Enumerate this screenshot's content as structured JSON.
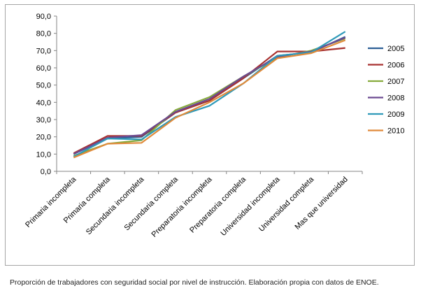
{
  "chart_data": {
    "type": "line",
    "title": "",
    "xlabel": "",
    "ylabel": "",
    "ylim": [
      0,
      90
    ],
    "yticks": [
      "0,0",
      "10,0",
      "20,0",
      "30,0",
      "40,0",
      "50,0",
      "60,0",
      "70,0",
      "80,0",
      "90,0"
    ],
    "grid": false,
    "legend_position": "right",
    "categories": [
      "Primaria incompleta",
      "Primaria completa",
      "Secundaria incompleta",
      "Secundaria completa",
      "Preparatoria incompleta",
      "Preparatoria completa",
      "Universidad incompleta",
      "Universidad completa",
      "Mas que universidad"
    ],
    "series": [
      {
        "name": "2005",
        "color": "#2e5f96",
        "values": [
          10.0,
          19.0,
          20.0,
          34.0,
          41.0,
          54.0,
          67.0,
          69.0,
          78.0
        ]
      },
      {
        "name": "2006",
        "color": "#a83230",
        "values": [
          10.5,
          20.5,
          20.5,
          34.0,
          41.0,
          54.0,
          69.5,
          69.5,
          71.5
        ]
      },
      {
        "name": "2007",
        "color": "#86aa3c",
        "values": [
          9.0,
          16.0,
          18.0,
          35.5,
          43.0,
          55.0,
          66.0,
          70.0,
          77.0
        ]
      },
      {
        "name": "2008",
        "color": "#6c4a91",
        "values": [
          10.0,
          19.5,
          21.0,
          34.5,
          42.0,
          55.0,
          66.5,
          69.5,
          77.5
        ]
      },
      {
        "name": "2009",
        "color": "#2f9ab9",
        "values": [
          8.5,
          19.0,
          18.5,
          31.5,
          38.0,
          51.0,
          67.0,
          69.0,
          81.0
        ]
      },
      {
        "name": "2010",
        "color": "#e08a3a",
        "values": [
          8.0,
          16.0,
          16.5,
          31.0,
          40.0,
          51.0,
          65.5,
          68.5,
          76.0
        ]
      }
    ]
  },
  "caption": "Proporción de trabajadores con seguridad social por nivel de instrucción. Elaboración propia con datos de ENOE."
}
